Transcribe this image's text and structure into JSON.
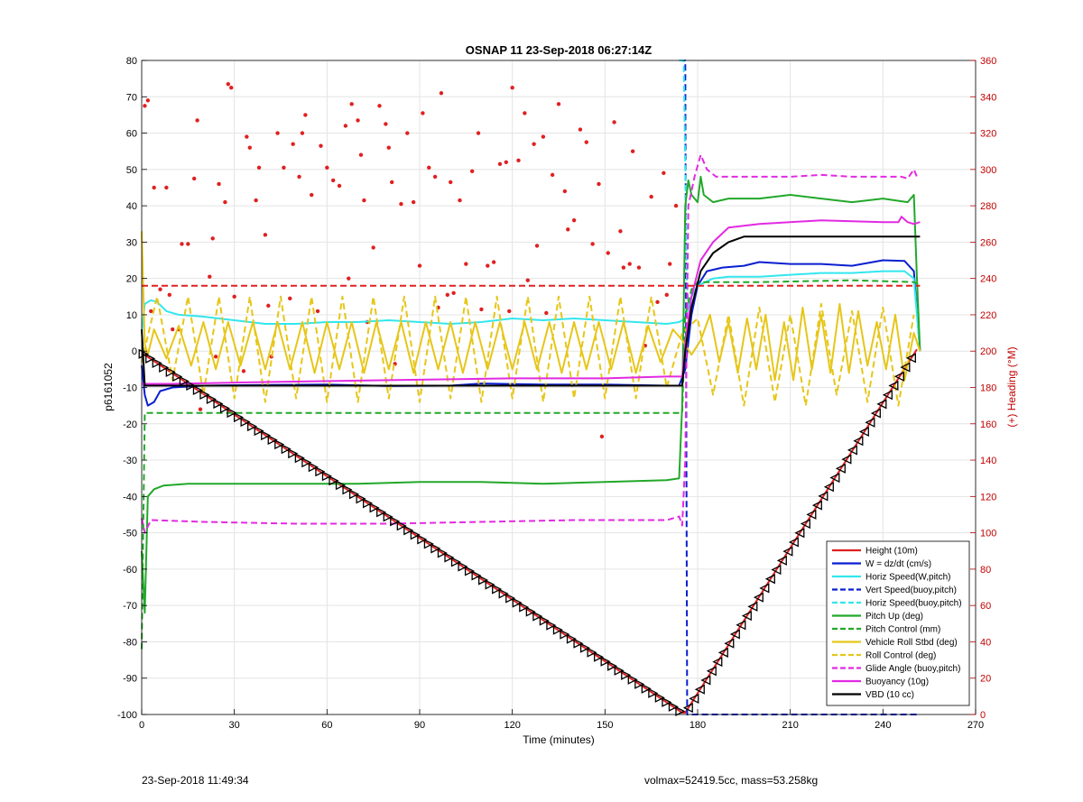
{
  "chart_data": {
    "type": "line",
    "title": "OSNAP 11 23-Sep-2018 06:27:14Z",
    "xlabel": "Time (minutes)",
    "ylabel": "p6161052",
    "ylabel_right": "(+) Heading (°M)",
    "xlim": [
      0,
      270
    ],
    "ylim": [
      -100,
      80
    ],
    "ylim_right": [
      0,
      360
    ],
    "x_ticks": [
      0,
      30,
      60,
      90,
      120,
      150,
      180,
      210,
      240,
      270
    ],
    "y_ticks": [
      -100,
      -90,
      -80,
      -70,
      -60,
      -50,
      -40,
      -30,
      -20,
      -10,
      0,
      10,
      20,
      30,
      40,
      50,
      60,
      70,
      80
    ],
    "y_right_ticks": [
      0,
      20,
      40,
      60,
      80,
      100,
      120,
      140,
      160,
      180,
      200,
      220,
      240,
      260,
      280,
      300,
      320,
      340,
      360
    ],
    "grid": true,
    "legend_position": "bottom-right",
    "colors": {
      "red": "#e02020",
      "blue": "#0a1fd0",
      "cyan": "#33e6ee",
      "green": "#22a82a",
      "yellow": "#e6c619",
      "magenta": "#e22ae2",
      "black": "#000000",
      "right_axis": "#c00000"
    },
    "series": [
      {
        "name": "Height (10m)",
        "color": "#e02020",
        "style": "solid",
        "x": [
          0,
          175,
          176,
          251
        ],
        "y": [
          -0.5,
          -99.5,
          -99.5,
          0.5
        ]
      },
      {
        "name": "W = dz/dt (cm/s)",
        "color": "#0a1fd0",
        "style": "solid",
        "x": [
          0,
          1,
          2,
          4,
          6,
          10,
          20,
          40,
          60,
          80,
          100,
          110,
          130,
          150,
          170,
          174,
          176,
          178,
          180,
          183,
          188,
          195,
          200,
          210,
          220,
          230,
          240,
          247,
          250,
          252
        ],
        "y": [
          -4,
          -12,
          -15,
          -14,
          -11,
          -10,
          -9.5,
          -9.3,
          -9.2,
          -9.6,
          -9.5,
          -8.9,
          -9.2,
          -9.2,
          -9.5,
          -9.5,
          -5,
          10,
          18,
          22,
          23,
          23.5,
          24.5,
          24,
          24,
          23.5,
          25,
          24.8,
          22,
          0
        ]
      },
      {
        "name": "Horiz Speed(W,pitch)",
        "color": "#33e6ee",
        "style": "solid",
        "x": [
          0,
          1,
          3,
          5,
          8,
          12,
          20,
          30,
          40,
          50,
          60,
          70,
          80,
          90,
          100,
          110,
          120,
          130,
          140,
          150,
          160,
          170,
          174,
          176,
          178,
          180,
          185,
          190,
          200,
          210,
          220,
          230,
          240,
          247,
          250,
          252
        ],
        "y": [
          5,
          13,
          14,
          13.5,
          11,
          10,
          9.5,
          8.5,
          7.5,
          7.5,
          8,
          8,
          8.5,
          8,
          7.5,
          8,
          9,
          8.5,
          9,
          8.5,
          8,
          7.5,
          8,
          9,
          15,
          18,
          20,
          20.5,
          20.5,
          21,
          21.5,
          21.5,
          22,
          22,
          20,
          0
        ]
      },
      {
        "name": "Vert Speed(buoy,pitch)",
        "color": "#0a1fd0",
        "style": "dashed",
        "x": [
          174,
          176,
          176.6,
          177,
          252
        ],
        "y": [
          80,
          80,
          -100,
          -100,
          -100
        ]
      },
      {
        "name": "Horiz Speed(buoy,pitch)",
        "color": "#33e6ee",
        "style": "dashed",
        "x": [
          174,
          175.5,
          176.5,
          177
        ],
        "y": [
          80,
          80,
          20,
          12
        ]
      },
      {
        "name": "Pitch Up (deg)",
        "color": "#22a82a",
        "style": "solid",
        "x": [
          0,
          1,
          2,
          4,
          7,
          15,
          30,
          50,
          70,
          90,
          110,
          130,
          150,
          170,
          174,
          175,
          176,
          177,
          178,
          180,
          181,
          182,
          185,
          190,
          200,
          210,
          220,
          230,
          240,
          248,
          250,
          251,
          252
        ],
        "y": [
          -55,
          -72,
          -40,
          -38,
          -37,
          -36.5,
          -36.5,
          -36.5,
          -36.5,
          -36,
          -36,
          -36.5,
          -36,
          -35.5,
          -35,
          -15,
          40,
          47,
          43,
          41,
          48,
          43,
          41,
          42,
          42,
          43,
          42,
          41,
          42,
          41,
          43,
          20,
          0
        ]
      },
      {
        "name": "Pitch Control (mm)",
        "color": "#22a82a",
        "style": "dashed",
        "x": [
          0,
          1,
          3,
          30,
          60,
          90,
          120,
          150,
          175,
          176,
          178,
          180,
          200,
          230,
          250,
          252
        ],
        "y": [
          -82,
          -17,
          -17,
          -17,
          -17,
          -17,
          -17,
          -17,
          -17,
          10,
          17,
          19,
          19,
          19.5,
          19,
          18
        ]
      },
      {
        "name": "Vehicle Roll Stbd (deg)",
        "color": "#e6c619",
        "style": "solid",
        "x": [
          0,
          1,
          2,
          4,
          8,
          12,
          16,
          20,
          24,
          28,
          32,
          36,
          40,
          44,
          48,
          52,
          56,
          60,
          64,
          68,
          72,
          76,
          80,
          84,
          88,
          92,
          96,
          100,
          104,
          108,
          112,
          116,
          120,
          124,
          128,
          132,
          136,
          140,
          144,
          148,
          152,
          156,
          160,
          164,
          168,
          172,
          175,
          178,
          181,
          184,
          187,
          190,
          193,
          196,
          199,
          202,
          205,
          208,
          211,
          214,
          217,
          220,
          223,
          226,
          229,
          232,
          235,
          238,
          241,
          244,
          247,
          250,
          252
        ],
        "y": [
          33,
          2,
          -1,
          6,
          -2,
          7,
          -4,
          8,
          -5,
          8,
          -4,
          8,
          -5,
          8,
          -5,
          8,
          -6,
          8,
          -5,
          8,
          -6,
          8,
          -5,
          8,
          -6,
          8,
          -5,
          8,
          -6,
          8,
          -5,
          8,
          -5,
          8,
          -5,
          8,
          -6,
          8,
          -5,
          8,
          -5,
          8,
          -6,
          7,
          -3,
          6,
          3,
          -1,
          3,
          10,
          -3,
          8,
          -6,
          9,
          -5,
          10,
          -8,
          8,
          -8,
          12,
          -5,
          10,
          -6,
          13,
          -6,
          11,
          -4,
          8,
          -5,
          10,
          -8,
          5,
          0
        ]
      },
      {
        "name": "Roll Control (deg)",
        "color": "#e6c619",
        "style": "dashed",
        "x": [
          0,
          5,
          10,
          15,
          20,
          25,
          30,
          35,
          40,
          45,
          50,
          55,
          60,
          65,
          70,
          75,
          80,
          85,
          90,
          95,
          100,
          105,
          110,
          115,
          120,
          125,
          130,
          135,
          140,
          145,
          150,
          155,
          160,
          165,
          170,
          175,
          180,
          185,
          190,
          195,
          200,
          205,
          210,
          215,
          220,
          225,
          230,
          235,
          240,
          245,
          250
        ],
        "y": [
          -3,
          15,
          -8,
          15,
          -12,
          15,
          -13,
          15,
          -14,
          15,
          -13,
          15,
          -14,
          15,
          -14,
          15,
          -13,
          15,
          -14,
          15,
          -13,
          15,
          -14,
          15,
          -13,
          15,
          -14,
          15,
          -13,
          15,
          -13,
          15,
          -13,
          15,
          -10,
          5,
          9,
          -12,
          10,
          -15,
          12,
          -14,
          10,
          -15,
          13,
          -12,
          11,
          -14,
          12,
          -15,
          10
        ]
      },
      {
        "name": "Glide Angle (buoy,pitch)",
        "color": "#e22ae2",
        "style": "dashed",
        "x": [
          0,
          1,
          3,
          20,
          50,
          80,
          110,
          140,
          170,
          174,
          175,
          176,
          177,
          179,
          181,
          183,
          186,
          190,
          200,
          210,
          220,
          230,
          240,
          246,
          248,
          250,
          251
        ],
        "y": [
          -46,
          -50,
          -46.5,
          -47,
          -47.5,
          -47.5,
          -47,
          -46.5,
          -46.5,
          -45.5,
          -48,
          -30,
          40,
          48,
          54,
          50,
          48,
          48,
          48,
          48,
          48.5,
          48,
          48,
          48,
          47.5,
          50,
          48
        ]
      },
      {
        "name": "Buoyancy (10g)",
        "color": "#e22ae2",
        "style": "solid",
        "x": [
          0,
          10,
          40,
          80,
          120,
          150,
          170,
          175,
          176,
          178,
          181,
          185,
          190,
          200,
          220,
          240,
          245,
          246,
          248,
          250,
          252
        ],
        "y": [
          -9,
          -9,
          -8.5,
          -8,
          -7.5,
          -7.5,
          -7,
          -7,
          2,
          15,
          25,
          30,
          34,
          35,
          36,
          35.5,
          35.5,
          37,
          35.5,
          35,
          35.5
        ]
      },
      {
        "name": "VBD (10 cc)",
        "color": "#000000",
        "style": "solid",
        "x": [
          0,
          1,
          5,
          20,
          50,
          100,
          150,
          175,
          176,
          178,
          181,
          185,
          190,
          195,
          200,
          220,
          240,
          252
        ],
        "y": [
          6,
          -9.5,
          -9.5,
          -9.5,
          -9.5,
          -9.5,
          -9.5,
          -9.5,
          0,
          12,
          22,
          27,
          30,
          31.5,
          31.5,
          31.5,
          31.5,
          31.5
        ]
      },
      {
        "name": "Heading target",
        "color": "#e02020",
        "style": "dashed",
        "axis": "right",
        "x": [
          0,
          252
        ],
        "y": [
          236,
          236
        ]
      }
    ],
    "legend": [
      {
        "label": "Height (10m)",
        "color": "#e02020",
        "style": "solid"
      },
      {
        "label": "W = dz/dt (cm/s)",
        "color": "#0a1fd0",
        "style": "solid"
      },
      {
        "label": "Horiz Speed(W,pitch)",
        "color": "#33e6ee",
        "style": "solid"
      },
      {
        "label": "Vert Speed(buoy,pitch)",
        "color": "#0a1fd0",
        "style": "dashed"
      },
      {
        "label": "Horiz Speed(buoy,pitch)",
        "color": "#33e6ee",
        "style": "dashed"
      },
      {
        "label": "Pitch Up (deg)",
        "color": "#22a82a",
        "style": "solid"
      },
      {
        "label": "Pitch Control (mm)",
        "color": "#22a82a",
        "style": "dashed"
      },
      {
        "label": "Vehicle Roll Stbd (deg)",
        "color": "#e6c619",
        "style": "solid"
      },
      {
        "label": "Roll Control (deg)",
        "color": "#e6c619",
        "style": "dashed"
      },
      {
        "label": "Glide Angle (buoy,pitch)",
        "color": "#e22ae2",
        "style": "dashed"
      },
      {
        "label": "Buoyancy (10g)",
        "color": "#e22ae2",
        "style": "solid"
      },
      {
        "label": "VBD (10 cc)",
        "color": "#000000",
        "style": "solid"
      }
    ],
    "heading_points": {
      "axis": "right",
      "color": "#e02020",
      "points": [
        [
          1,
          335
        ],
        [
          2,
          338
        ],
        [
          3,
          222
        ],
        [
          4,
          290
        ],
        [
          6,
          234
        ],
        [
          8,
          290
        ],
        [
          9,
          231
        ],
        [
          10,
          212
        ],
        [
          12,
          212
        ],
        [
          13,
          259
        ],
        [
          15,
          259
        ],
        [
          17,
          295
        ],
        [
          18,
          327
        ],
        [
          19,
          168
        ],
        [
          22,
          241
        ],
        [
          23,
          262
        ],
        [
          24,
          197
        ],
        [
          25,
          292
        ],
        [
          27,
          282
        ],
        [
          28,
          347
        ],
        [
          29,
          345
        ],
        [
          30,
          230
        ],
        [
          33,
          189
        ],
        [
          34,
          318
        ],
        [
          35,
          312
        ],
        [
          37,
          283
        ],
        [
          38,
          301
        ],
        [
          40,
          264
        ],
        [
          41,
          225
        ],
        [
          42,
          197
        ],
        [
          44,
          320
        ],
        [
          46,
          301
        ],
        [
          48,
          229
        ],
        [
          49,
          314
        ],
        [
          51,
          296
        ],
        [
          52,
          320
        ],
        [
          53,
          330
        ],
        [
          55,
          286
        ],
        [
          57,
          222
        ],
        [
          58,
          313
        ],
        [
          60,
          301
        ],
        [
          62,
          294
        ],
        [
          64,
          291
        ],
        [
          66,
          324
        ],
        [
          67,
          240
        ],
        [
          68,
          336
        ],
        [
          70,
          327
        ],
        [
          71,
          308
        ],
        [
          72,
          283
        ],
        [
          73,
          216
        ],
        [
          75,
          257
        ],
        [
          77,
          335
        ],
        [
          79,
          325
        ],
        [
          80,
          312
        ],
        [
          81,
          293
        ],
        [
          82,
          193
        ],
        [
          84,
          281
        ],
        [
          86,
          320
        ],
        [
          88,
          282
        ],
        [
          90,
          247
        ],
        [
          91,
          331
        ],
        [
          93,
          301
        ],
        [
          95,
          296
        ],
        [
          96,
          224
        ],
        [
          97,
          342
        ],
        [
          99,
          231
        ],
        [
          100,
          293
        ],
        [
          101,
          232
        ],
        [
          103,
          283
        ],
        [
          105,
          248
        ],
        [
          107,
          299
        ],
        [
          109,
          320
        ],
        [
          110,
          223
        ],
        [
          112,
          247
        ],
        [
          114,
          249
        ],
        [
          116,
          303
        ],
        [
          118,
          304
        ],
        [
          119,
          222
        ],
        [
          120,
          345
        ],
        [
          122,
          305
        ],
        [
          124,
          331
        ],
        [
          125,
          239
        ],
        [
          127,
          314
        ],
        [
          128,
          258
        ],
        [
          130,
          318
        ],
        [
          131,
          221
        ],
        [
          133,
          297
        ],
        [
          135,
          336
        ],
        [
          137,
          288
        ],
        [
          138,
          267
        ],
        [
          140,
          272
        ],
        [
          142,
          322
        ],
        [
          144,
          315
        ],
        [
          146,
          259
        ],
        [
          148,
          292
        ],
        [
          149,
          153
        ],
        [
          151,
          254
        ],
        [
          153,
          326
        ],
        [
          155,
          266
        ],
        [
          156,
          246
        ],
        [
          158,
          248
        ],
        [
          159,
          310
        ],
        [
          161,
          246
        ],
        [
          163,
          203
        ],
        [
          165,
          285
        ],
        [
          167,
          227
        ],
        [
          169,
          298
        ],
        [
          170,
          231
        ],
        [
          171,
          248
        ],
        [
          173,
          280
        ]
      ]
    },
    "markers": [
      {
        "name": "Descent markers",
        "shape": "triangle-right",
        "x_from": 0.5,
        "x_to": 175,
        "step": 2.2
      },
      {
        "name": "Ascent markers",
        "shape": "triangle-left",
        "x_from": 177,
        "x_to": 251,
        "step": 1.9
      }
    ]
  },
  "footer": {
    "left": "23-Sep-2018 11:49:34",
    "right": "volmax=52419.5cc, mass=53.258kg"
  }
}
